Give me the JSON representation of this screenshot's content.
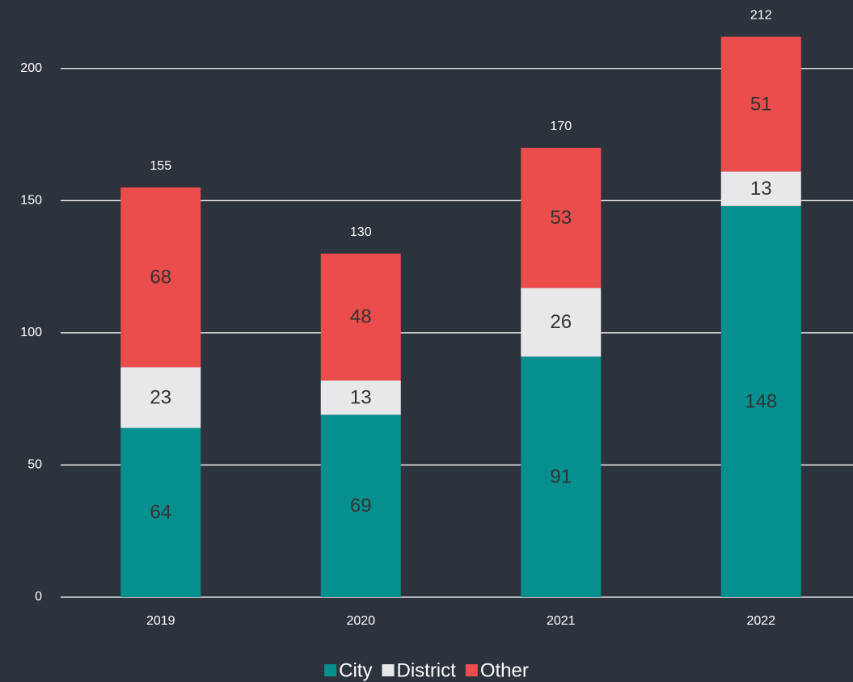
{
  "chart_data": {
    "type": "stacked_bar",
    "categories": [
      "2019",
      "2020",
      "2021",
      "2022"
    ],
    "series": [
      {
        "name": "City",
        "color": "#068f8f",
        "values": [
          64,
          69,
          91,
          148
        ]
      },
      {
        "name": "District",
        "color": "#e8e8ea",
        "values": [
          23,
          13,
          26,
          13
        ]
      },
      {
        "name": "Other",
        "color": "#eb4d4d",
        "values": [
          68,
          48,
          53,
          51
        ]
      }
    ],
    "totals": [
      155,
      130,
      170,
      212
    ],
    "ylim": [
      0,
      225
    ],
    "yticks": [
      0,
      50,
      100,
      150,
      200
    ],
    "grid": true,
    "legend": "bottom"
  }
}
